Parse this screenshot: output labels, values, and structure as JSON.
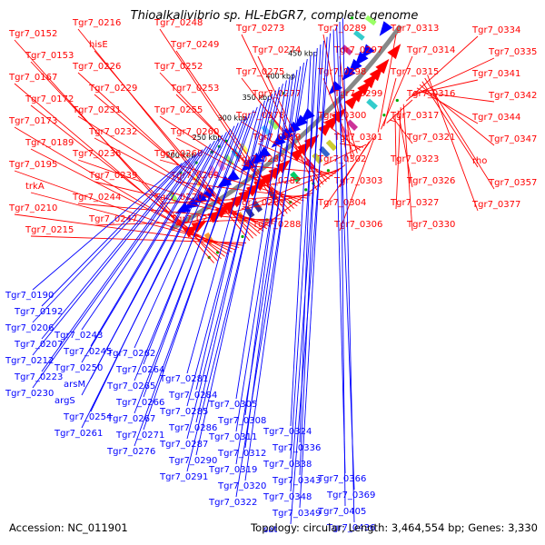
{
  "title": "Thioalkalivibrio sp. HL-EbGR7, complete genome",
  "accession": "Accession: NC_011901",
  "summary": "Topology: circular; Length: 3,464,554 bp; Genes: 3,330",
  "colors": {
    "forward": "#ff0000",
    "reverse": "#0000ff",
    "backbone": "#888888"
  },
  "scale_labels": [
    "200 kbp",
    "250 kbp",
    "300 kbp",
    "350 kbp",
    "400 kbp",
    "450 kbp"
  ],
  "forward_labels": [
    "Tgr7_0152",
    "Tgr7_0153",
    "Tgr7_0167",
    "Tgr7_0172",
    "Tgr7_0173",
    "Tgr7_0189",
    "Tgr7_0195",
    "trkA",
    "Tgr7_0210",
    "Tgr7_0215",
    "Tgr7_0216",
    "hisE",
    "Tgr7_0226",
    "Tgr7_0229",
    "Tgr7_0231",
    "Tgr7_0232",
    "Tgr7_0236",
    "Tgr7_0239",
    "Tgr7_0244",
    "Tgr7_0247",
    "Tgr7_0248",
    "Tgr7_0249",
    "Tgr7_0252",
    "Tgr7_0253",
    "Tgr7_0255",
    "Tgr7_0260",
    "Tgr7_0268",
    "Tgr7_0269",
    "Tgr7_0270",
    "Tgr7_0272",
    "Tgr7_0273",
    "Tgr7_0274",
    "Tgr7_0275",
    "Tgr7_0277",
    "Tgr7_0278",
    "Tgr7_0279",
    "Tgr7_0280",
    "Tgr7_0282",
    "Tgr7_0283",
    "Tgr7_0288",
    "Tgr7_0289",
    "Tgr7_0297",
    "Tgr7_0298",
    "Tgr7_0299",
    "Tgr7_0300",
    "Tgr7_0301",
    "Tgr7_0302",
    "Tgr7_0303",
    "Tgr7_0304",
    "Tgr7_0306",
    "Tgr7_0313",
    "Tgr7_0314",
    "Tgr7_0315",
    "Tgr7_0316",
    "Tgr7_0317",
    "Tgr7_0321",
    "Tgr7_0323",
    "Tgr7_0326",
    "Tgr7_0327",
    "Tgr7_0330",
    "Tgr7_0334",
    "Tgr7_0335",
    "Tgr7_0341",
    "Tgr7_0342",
    "Tgr7_0344",
    "Tgr7_0347",
    "rho",
    "Tgr7_0357",
    "Tgr7_0377"
  ],
  "reverse_labels": [
    "Tgr7_0190",
    "Tgr7_0192",
    "Tgr7_0206",
    "Tgr7_0207",
    "Tgr7_0212",
    "Tgr7_0223",
    "Tgr7_0230",
    "Tgr7_0243",
    "Tgr7_0245",
    "Tgr7_0250",
    "arsM",
    "argS",
    "Tgr7_0254",
    "Tgr7_0261",
    "Tgr7_0262",
    "Tgr7_0264",
    "Tgr7_0265",
    "Tgr7_0266",
    "Tgr7_0267",
    "Tgr7_0271",
    "Tgr7_0276",
    "Tgr7_0281",
    "Tgr7_0284",
    "Tgr7_0285",
    "Tgr7_0286",
    "Tgr7_0287",
    "Tgr7_0290",
    "Tgr7_0291",
    "Tgr7_0305",
    "Tgr7_0308",
    "Tgr7_0311",
    "Tgr7_0312",
    "Tgr7_0319",
    "Tgr7_0320",
    "Tgr7_0322",
    "Tgr7_0324",
    "Tgr7_0336",
    "Tgr7_0338",
    "Tgr7_0343",
    "Tgr7_0348",
    "Tgr7_0349",
    "sat",
    "Tgr7_0366",
    "Tgr7_0369",
    "Tgr7_0405",
    "Tgr7_0436"
  ]
}
